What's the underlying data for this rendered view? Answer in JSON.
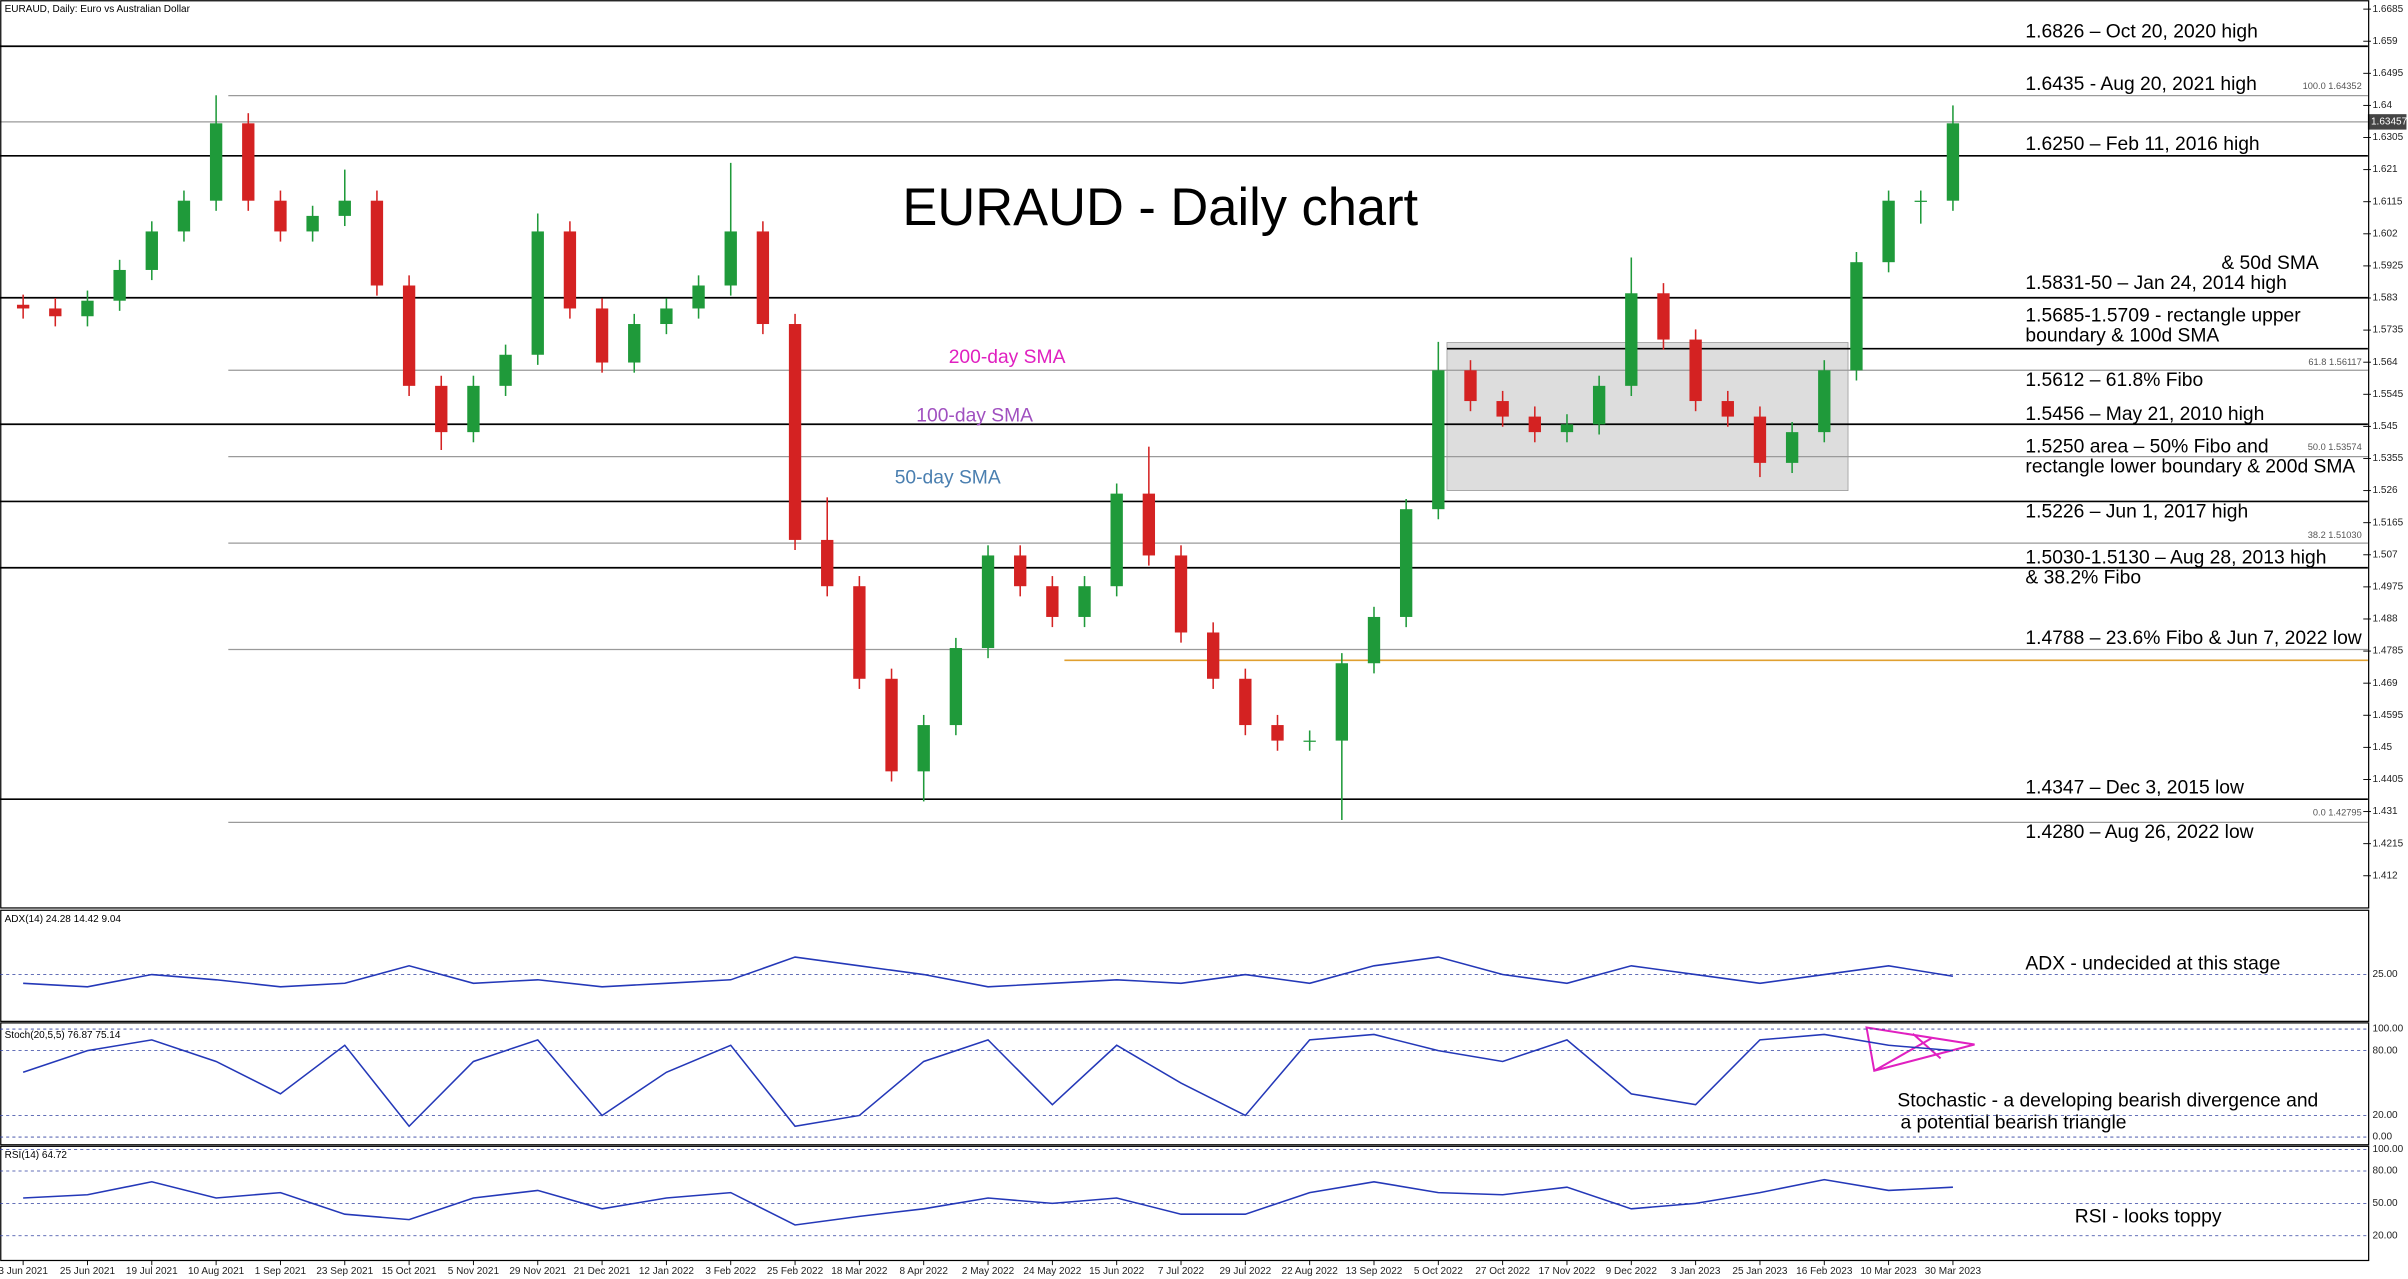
{
  "header": "EURAUD, Daily:  Euro vs Australian Dollar",
  "price_tag": "1.63457",
  "annotations": {
    "title": "EURAUD - Daily chart",
    "sma200": "200-day SMA",
    "sma100": "100-day SMA",
    "sma50": "50-day SMA",
    "levels": [
      "1.6826 – Oct 20, 2020 high",
      "1.6435 - Aug 20, 2021 high",
      "1.6250 – Feb 11, 2016 high",
      "& 50d SMA",
      "1.5831-50 – Jan 24, 2014 high",
      "1.5685-1.5709 - rectangle upper",
      "boundary & 100d SMA",
      "1.5612 – 61.8% Fibo",
      "1.5456 – May 21, 2010 high",
      "1.5250 area – 50% Fibo and",
      "rectangle lower boundary & 200d SMA",
      "1.5226 – Jun 1, 2017 high",
      "1.5030-1.5130 – Aug 28, 2013 high",
      "& 38.2% Fibo",
      "1.4788 – 23.6% Fibo & Jun 7, 2022 low",
      "1.4347 – Dec 3, 2015 low",
      "1.4280 – Aug 26, 2022 low"
    ],
    "fibo": [
      "100.0 1.64352",
      "61.8 1.56117",
      "50.0 1.53574",
      "38.2 1.51030",
      "0.0 1.42795"
    ],
    "adx_note": "ADX - undecided at this stage",
    "stoch_note": [
      "Stochastic - a developing bearish divergence and",
      "a potential bearish triangle"
    ],
    "rsi_note": "RSI - looks toppy"
  },
  "chart_data": [
    {
      "type": "candlestick",
      "categories": [
        "3 Jun 2021",
        null,
        "25 Jun 2021",
        null,
        "19 Jul 2021",
        null,
        "10 Aug 2021",
        null,
        "1 Sep 2021",
        null,
        "23 Sep 2021",
        null,
        "15 Oct 2021",
        null,
        "5 Nov 2021",
        null,
        "29 Nov 2021",
        null,
        "21 Dec 2021",
        null,
        "12 Jan 2022",
        null,
        "3 Feb 2022",
        null,
        "25 Feb 2022",
        null,
        "18 Mar 2022",
        null,
        "8 Apr 2022",
        null,
        "2 May 2022",
        null,
        "24 May 2022",
        null,
        "15 Jun 2022",
        null,
        "7 Jul 2022",
        null,
        "29 Jul 2022",
        null,
        "22 Aug 2022",
        null,
        "13 Sep 2022",
        null,
        "5 Oct 2022",
        null,
        "27 Oct 2022",
        null,
        "17 Nov 2022",
        null,
        "9 Dec 2022",
        null,
        "3 Jan 2023",
        null,
        "25 Jan 2023",
        null,
        "16 Feb 2023",
        null,
        "10 Mar 2023",
        null,
        "30 Mar 2023"
      ],
      "open": [
        1.581,
        1.5799,
        1.5776,
        1.5822,
        1.5913,
        1.6027,
        1.6118,
        1.6347,
        1.6118,
        1.6027,
        1.6073,
        1.6118,
        1.5867,
        1.557,
        1.5433,
        1.557,
        1.5662,
        1.6027,
        1.5799,
        1.5639,
        1.5753,
        1.5799,
        1.5867,
        1.6027,
        1.5753,
        1.5114,
        1.4977,
        1.4703,
        1.4429,
        1.4566,
        1.4794,
        1.5068,
        1.4977,
        1.4886,
        1.4977,
        1.5251,
        1.5068,
        1.484,
        1.4703,
        1.4566,
        1.452,
        1.452,
        1.4749,
        1.4886,
        1.5205,
        1.5616,
        1.5525,
        1.5479,
        1.5433,
        1.5456,
        1.557,
        1.5844,
        1.5707,
        1.5525,
        1.5479,
        1.5342,
        1.5433,
        1.5616,
        1.5936,
        1.6118,
        1.6118
      ],
      "high": [
        1.584,
        1.583,
        1.5852,
        1.5943,
        1.6057,
        1.6148,
        1.643,
        1.6377,
        1.6148,
        1.6103,
        1.621,
        1.6148,
        1.5897,
        1.56,
        1.56,
        1.5692,
        1.608,
        1.6057,
        1.5829,
        1.5783,
        1.5829,
        1.5897,
        1.623,
        1.6057,
        1.5783,
        1.524,
        1.5007,
        1.4733,
        1.4596,
        1.4824,
        1.5098,
        1.5098,
        1.5007,
        1.5007,
        1.5281,
        1.539,
        1.5098,
        1.487,
        1.4733,
        1.4596,
        1.455,
        1.4779,
        1.4916,
        1.5235,
        1.57,
        1.5646,
        1.5555,
        1.5509,
        1.5486,
        1.56,
        1.595,
        1.5874,
        1.5737,
        1.5555,
        1.5509,
        1.5463,
        1.5646,
        1.5966,
        1.6148,
        1.6148,
        1.64
      ],
      "low": [
        1.5769,
        1.5746,
        1.5746,
        1.5792,
        1.5883,
        1.5997,
        1.6088,
        1.6088,
        1.5997,
        1.5997,
        1.6043,
        1.5837,
        1.554,
        1.538,
        1.5403,
        1.554,
        1.5632,
        1.5769,
        1.5609,
        1.5609,
        1.5723,
        1.5769,
        1.5837,
        1.5723,
        1.5084,
        1.4947,
        1.4673,
        1.4399,
        1.434,
        1.4536,
        1.4764,
        1.4947,
        1.4856,
        1.4856,
        1.4947,
        1.5038,
        1.481,
        1.4673,
        1.4536,
        1.449,
        1.449,
        1.4285,
        1.4719,
        1.4856,
        1.5175,
        1.5495,
        1.5449,
        1.5403,
        1.5403,
        1.5426,
        1.554,
        1.5677,
        1.5495,
        1.5449,
        1.53,
        1.5312,
        1.5403,
        1.5586,
        1.5906,
        1.605,
        1.6088
      ],
      "close": [
        1.5799,
        1.5776,
        1.5822,
        1.5913,
        1.6027,
        1.6118,
        1.6347,
        1.6118,
        1.6027,
        1.6073,
        1.6118,
        1.5867,
        1.557,
        1.5433,
        1.557,
        1.5662,
        1.6027,
        1.5799,
        1.5639,
        1.5753,
        1.5799,
        1.5867,
        1.6027,
        1.5753,
        1.5114,
        1.4977,
        1.4703,
        1.4429,
        1.4566,
        1.4794,
        1.5068,
        1.4977,
        1.4886,
        1.4977,
        1.5251,
        1.5068,
        1.484,
        1.4703,
        1.4566,
        1.452,
        1.452,
        1.4749,
        1.4886,
        1.5205,
        1.5616,
        1.5525,
        1.5479,
        1.5433,
        1.5456,
        1.557,
        1.5844,
        1.5707,
        1.5525,
        1.5479,
        1.5342,
        1.5433,
        1.5616,
        1.5936,
        1.6118,
        1.6118,
        1.6347
      ],
      "up_color": "#1f9a3a",
      "down_color": "#d42222",
      "ylim": [
        1.4027,
        1.6712
      ],
      "yticks": [
        1.6685,
        1.659,
        1.6495,
        1.64,
        1.6305,
        1.621,
        1.6115,
        1.602,
        1.5925,
        1.583,
        1.5735,
        1.564,
        1.5545,
        1.545,
        1.5355,
        1.526,
        1.5165,
        1.507,
        1.4975,
        1.488,
        1.4785,
        1.469,
        1.4595,
        1.45,
        1.4405,
        1.431,
        1.4215,
        1.412
      ]
    },
    {
      "type": "line",
      "name": "ADX(14) 24.28 14.42 9.04",
      "color": "#2438b8",
      "values": [
        20,
        18,
        25,
        22,
        18,
        20,
        30,
        20,
        22,
        18,
        20,
        22,
        35,
        30,
        25,
        18,
        20,
        22,
        20,
        25,
        20,
        30,
        35,
        25,
        20,
        30,
        25,
        20,
        25,
        30,
        24
      ],
      "ylim": [
        0,
        60
      ],
      "yticks": [
        {
          "value": 25,
          "label": "25.00"
        }
      ]
    },
    {
      "type": "line",
      "name": "Stoch(20,5,5) 76.87 75.14",
      "color": "#2438b8",
      "values": [
        60,
        80,
        90,
        70,
        40,
        85,
        10,
        70,
        90,
        20,
        60,
        85,
        10,
        20,
        70,
        90,
        30,
        85,
        50,
        20,
        90,
        95,
        80,
        70,
        90,
        40,
        30,
        90,
        95,
        85,
        80
      ],
      "ylim": [
        0,
        100
      ],
      "yticks": [
        {
          "value": 100,
          "label": "100.00"
        },
        {
          "value": 80,
          "label": "80.00"
        },
        {
          "value": 20,
          "label": "20.00"
        },
        {
          "value": 0,
          "label": "0.00"
        }
      ]
    },
    {
      "type": "line",
      "name": "RSI(14) 64.72",
      "color": "#2438b8",
      "values": [
        55,
        58,
        70,
        55,
        60,
        40,
        35,
        55,
        62,
        45,
        55,
        60,
        30,
        38,
        45,
        55,
        50,
        55,
        40,
        40,
        60,
        70,
        60,
        58,
        65,
        45,
        50,
        60,
        72,
        62,
        65
      ],
      "ylim": [
        0,
        100
      ],
      "yticks": [
        {
          "value": 100,
          "label": "100.00"
        },
        {
          "value": 80,
          "label": "80.00"
        },
        {
          "value": 50,
          "label": "50.00"
        },
        {
          "value": 20,
          "label": "20.00"
        }
      ]
    }
  ]
}
